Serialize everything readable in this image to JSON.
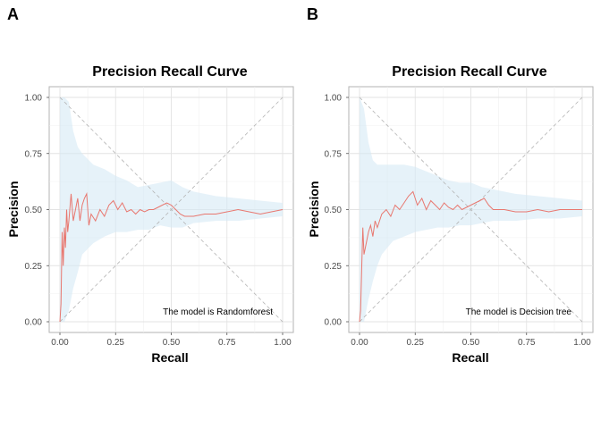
{
  "chart_data": [
    {
      "panel": "A",
      "type": "line",
      "title": "Precision Recall Curve",
      "xlabel": "Recall",
      "ylabel": "Precision",
      "xlim": [
        0,
        1
      ],
      "ylim": [
        0,
        1
      ],
      "xticks": [
        "0.00",
        "0.25",
        "0.50",
        "0.75",
        "1.00"
      ],
      "yticks": [
        "0.00",
        "0.25",
        "0.50",
        "0.75",
        "1.00"
      ],
      "grid": true,
      "annotation": "The model is Randomforest",
      "colors": {
        "line": "#e8776f",
        "ribbon": "#d6e9f5",
        "reference": "#b3b3b3"
      },
      "reference_lines": [
        {
          "x": [
            0,
            1
          ],
          "y": [
            0,
            1
          ]
        },
        {
          "x": [
            0,
            1
          ],
          "y": [
            1,
            0
          ]
        }
      ],
      "series": [
        {
          "x": [
            0.0,
            0.005,
            0.01,
            0.015,
            0.02,
            0.025,
            0.03,
            0.035,
            0.04,
            0.05,
            0.06,
            0.07,
            0.08,
            0.09,
            0.1,
            0.11,
            0.12,
            0.13,
            0.14,
            0.16,
            0.18,
            0.2,
            0.22,
            0.24,
            0.26,
            0.28,
            0.3,
            0.32,
            0.34,
            0.36,
            0.38,
            0.4,
            0.42,
            0.44,
            0.46,
            0.48,
            0.5,
            0.52,
            0.54,
            0.56,
            0.6,
            0.65,
            0.7,
            0.75,
            0.8,
            0.85,
            0.9,
            0.95,
            1.0
          ],
          "y": [
            0.0,
            0.08,
            0.4,
            0.25,
            0.42,
            0.33,
            0.5,
            0.4,
            0.45,
            0.57,
            0.45,
            0.5,
            0.55,
            0.45,
            0.52,
            0.55,
            0.57,
            0.43,
            0.48,
            0.45,
            0.5,
            0.47,
            0.52,
            0.54,
            0.5,
            0.53,
            0.49,
            0.5,
            0.48,
            0.5,
            0.49,
            0.5,
            0.5,
            0.51,
            0.52,
            0.53,
            0.52,
            0.5,
            0.48,
            0.47,
            0.47,
            0.48,
            0.48,
            0.49,
            0.5,
            0.49,
            0.48,
            0.49,
            0.5
          ]
        }
      ],
      "ribbon": {
        "x": [
          0.0,
          0.02,
          0.04,
          0.06,
          0.08,
          0.1,
          0.15,
          0.2,
          0.25,
          0.3,
          0.35,
          0.4,
          0.45,
          0.5,
          0.55,
          0.6,
          0.7,
          0.8,
          0.9,
          1.0
        ],
        "upper": [
          1.0,
          1.0,
          0.98,
          0.85,
          0.78,
          0.75,
          0.7,
          0.68,
          0.65,
          0.63,
          0.6,
          0.61,
          0.62,
          0.63,
          0.6,
          0.58,
          0.56,
          0.55,
          0.54,
          0.53
        ],
        "lower": [
          0.0,
          0.0,
          0.05,
          0.15,
          0.22,
          0.3,
          0.35,
          0.38,
          0.4,
          0.4,
          0.41,
          0.41,
          0.43,
          0.42,
          0.42,
          0.44,
          0.45,
          0.45,
          0.46,
          0.47
        ]
      }
    },
    {
      "panel": "B",
      "type": "line",
      "title": "Precision Recall Curve",
      "xlabel": "Recall",
      "ylabel": "Precision",
      "xlim": [
        0,
        1
      ],
      "ylim": [
        0,
        1
      ],
      "xticks": [
        "0.00",
        "0.25",
        "0.50",
        "0.75",
        "1.00"
      ],
      "yticks": [
        "0.00",
        "0.25",
        "0.50",
        "0.75",
        "1.00"
      ],
      "grid": true,
      "annotation": "The model is Decision tree",
      "colors": {
        "line": "#e8776f",
        "ribbon": "#d6e9f5",
        "reference": "#b3b3b3"
      },
      "reference_lines": [
        {
          "x": [
            0,
            1
          ],
          "y": [
            0,
            1
          ]
        },
        {
          "x": [
            0,
            1
          ],
          "y": [
            1,
            0
          ]
        }
      ],
      "series": [
        {
          "x": [
            0.0,
            0.005,
            0.01,
            0.015,
            0.02,
            0.03,
            0.04,
            0.05,
            0.06,
            0.07,
            0.08,
            0.1,
            0.12,
            0.14,
            0.16,
            0.18,
            0.2,
            0.22,
            0.24,
            0.26,
            0.28,
            0.3,
            0.32,
            0.34,
            0.36,
            0.38,
            0.4,
            0.42,
            0.44,
            0.46,
            0.48,
            0.5,
            0.52,
            0.54,
            0.56,
            0.58,
            0.6,
            0.65,
            0.7,
            0.75,
            0.8,
            0.85,
            0.9,
            0.95,
            1.0
          ],
          "y": [
            0.0,
            0.05,
            0.25,
            0.42,
            0.3,
            0.35,
            0.4,
            0.43,
            0.38,
            0.45,
            0.42,
            0.48,
            0.5,
            0.47,
            0.52,
            0.5,
            0.53,
            0.56,
            0.58,
            0.52,
            0.55,
            0.5,
            0.54,
            0.52,
            0.5,
            0.53,
            0.51,
            0.5,
            0.52,
            0.5,
            0.51,
            0.52,
            0.53,
            0.54,
            0.55,
            0.52,
            0.5,
            0.5,
            0.49,
            0.49,
            0.5,
            0.49,
            0.5,
            0.5,
            0.5
          ]
        }
      ],
      "ribbon": {
        "x": [
          0.0,
          0.02,
          0.04,
          0.06,
          0.08,
          0.1,
          0.15,
          0.2,
          0.25,
          0.3,
          0.35,
          0.4,
          0.45,
          0.5,
          0.55,
          0.6,
          0.7,
          0.8,
          0.9,
          1.0
        ],
        "upper": [
          1.0,
          0.95,
          0.8,
          0.72,
          0.7,
          0.7,
          0.7,
          0.7,
          0.69,
          0.67,
          0.65,
          0.63,
          0.62,
          0.62,
          0.6,
          0.59,
          0.57,
          0.56,
          0.55,
          0.54
        ],
        "lower": [
          0.0,
          0.0,
          0.1,
          0.18,
          0.25,
          0.3,
          0.36,
          0.38,
          0.4,
          0.41,
          0.42,
          0.42,
          0.43,
          0.43,
          0.44,
          0.45,
          0.45,
          0.46,
          0.46,
          0.47
        ]
      }
    }
  ]
}
